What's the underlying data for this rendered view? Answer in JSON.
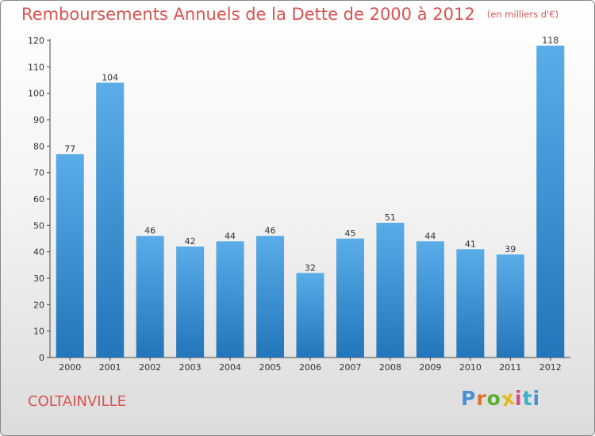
{
  "header": {
    "title": "Remboursements Annuels de la Dette de 2000 à 2012",
    "unit": "(en milliers d'€)"
  },
  "footer": {
    "commune": "COLTAINVILLE",
    "brand": "Proxiti"
  },
  "colors": {
    "title": "#d9534f",
    "bar_light": "#5aade9",
    "bar_dark": "#2276b9",
    "logo": [
      "#4a8fd4",
      "#e06f2c",
      "#5bb030",
      "#e0b820",
      "#d94a8c",
      "#38b0c8",
      "#4a8fd4"
    ]
  },
  "chart_data": {
    "type": "bar",
    "title": "Remboursements Annuels de la Dette de 2000 à 2012",
    "unit": "(en milliers d'€)",
    "categories": [
      "2000",
      "2001",
      "2002",
      "2003",
      "2004",
      "2005",
      "2006",
      "2007",
      "2008",
      "2009",
      "2010",
      "2011",
      "2012"
    ],
    "values": [
      77,
      104,
      46,
      42,
      44,
      46,
      32,
      45,
      51,
      44,
      41,
      39,
      118
    ],
    "ylim": [
      0,
      120
    ],
    "yticks": [
      0,
      10,
      20,
      30,
      40,
      50,
      60,
      70,
      80,
      90,
      100,
      110,
      120
    ],
    "grid": false,
    "data_labels": true
  }
}
